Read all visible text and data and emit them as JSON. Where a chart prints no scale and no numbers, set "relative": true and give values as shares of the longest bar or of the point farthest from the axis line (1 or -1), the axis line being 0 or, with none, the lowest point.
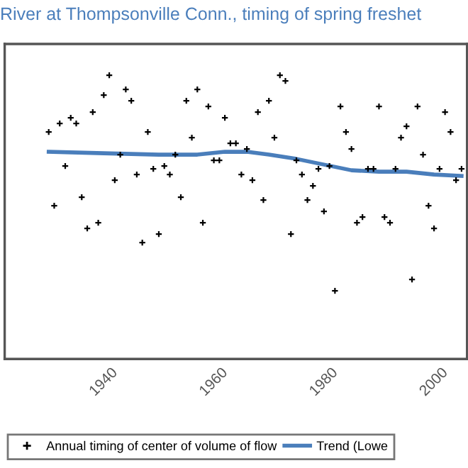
{
  "chart_data": {
    "type": "scatter",
    "title": "River at Thompsonville Conn., timing of spring freshet",
    "relative": true,
    "xlim": [
      1922,
      2006
    ],
    "xticks": [
      1940,
      1960,
      1980,
      2000
    ],
    "legend": "bottom",
    "series": [
      {
        "name": "Annual timing of center of volume of flow",
        "marker": "cross",
        "color": "#000000",
        "x": [
          1930,
          1931,
          1932,
          1933,
          1934,
          1935,
          1936,
          1937,
          1938,
          1939,
          1940,
          1941,
          1942,
          1943,
          1944,
          1945,
          1946,
          1947,
          1948,
          1949,
          1950,
          1951,
          1952,
          1953,
          1954,
          1955,
          1956,
          1957,
          1958,
          1959,
          1960,
          1961,
          1962,
          1963,
          1964,
          1965,
          1966,
          1967,
          1968,
          1969,
          1970,
          1971,
          1972,
          1973,
          1974,
          1975,
          1976,
          1977,
          1978,
          1979,
          1980,
          1981,
          1982,
          1983,
          1984,
          1985,
          1986,
          1987,
          1988,
          1989,
          1990,
          1991,
          1992,
          1993,
          1994,
          1995,
          1996,
          1997,
          1998,
          1999,
          2000,
          2001,
          2002,
          2003,
          2004,
          2005
        ],
        "values": [
          0.8,
          0.54,
          0.83,
          0.68,
          0.85,
          0.83,
          0.57,
          0.46,
          0.87,
          0.48,
          0.93,
          1.0,
          0.63,
          0.72,
          0.95,
          0.91,
          0.65,
          0.41,
          0.8,
          0.67,
          0.44,
          0.68,
          0.65,
          0.72,
          0.57,
          0.91,
          0.78,
          0.95,
          0.48,
          0.89,
          0.7,
          0.7,
          0.85,
          0.76,
          0.76,
          0.65,
          0.74,
          0.63,
          0.87,
          0.56,
          0.91,
          0.78,
          1.0,
          0.98,
          0.44,
          0.7,
          0.65,
          0.56,
          0.61,
          0.67,
          0.52,
          0.68,
          0.24,
          0.89,
          0.8,
          0.74,
          0.48,
          0.5,
          0.67,
          0.67,
          0.89,
          0.5,
          0.48,
          0.67,
          0.78,
          0.82,
          0.28,
          0.89,
          0.72,
          0.54,
          0.46,
          0.67,
          0.87,
          0.8,
          0.63,
          0.67
        ]
      },
      {
        "name": "Trend (Lowe",
        "type": "line",
        "color": "#4a7ebb",
        "line_style": "solid",
        "x": [
          1930,
          1940,
          1950,
          1957,
          1962,
          1966,
          1970,
          1975,
          1980,
          1985,
          1990,
          1995,
          2000,
          2005
        ],
        "values": [
          0.73,
          0.725,
          0.72,
          0.72,
          0.73,
          0.73,
          0.72,
          0.705,
          0.685,
          0.665,
          0.66,
          0.66,
          0.65,
          0.645
        ]
      }
    ]
  }
}
